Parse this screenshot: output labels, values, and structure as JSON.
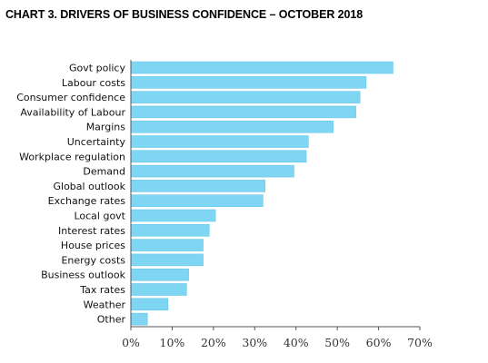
{
  "title": "CHART 3. DRIVERS OF BUSINESS CONFIDENCE – OCTOBER 2018",
  "colors": {
    "bar": "#7fd6f3",
    "bar_stroke": "#5bbfe3",
    "axis": "#555555"
  },
  "chart_data": {
    "type": "bar",
    "orientation": "horizontal",
    "title": "CHART 3. DRIVERS OF BUSINESS CONFIDENCE – OCTOBER 2018",
    "categories": [
      "Govt policy",
      "Labour costs",
      "Consumer confidence",
      "Availability of Labour",
      "Margins",
      "Uncertainty",
      "Workplace regulation",
      "Demand",
      "Global outlook",
      "Exchange rates",
      "Local govt",
      "Interest rates",
      "House prices",
      "Energy costs",
      "Business outlook",
      "Tax rates",
      "Weather",
      "Other"
    ],
    "values": [
      63.5,
      57,
      55.5,
      54.5,
      49,
      43,
      42.5,
      39.5,
      32.5,
      32,
      20.5,
      19,
      17.5,
      17.5,
      14,
      13.5,
      9,
      4
    ],
    "xlim": [
      0,
      70
    ],
    "xticks": [
      0,
      10,
      20,
      30,
      40,
      50,
      60,
      70
    ],
    "xtick_labels": [
      "0%",
      "10%",
      "20%",
      "30%",
      "40%",
      "50%",
      "60%",
      "70%"
    ],
    "xlabel": "",
    "ylabel": "",
    "grid": false,
    "legend": "none"
  }
}
